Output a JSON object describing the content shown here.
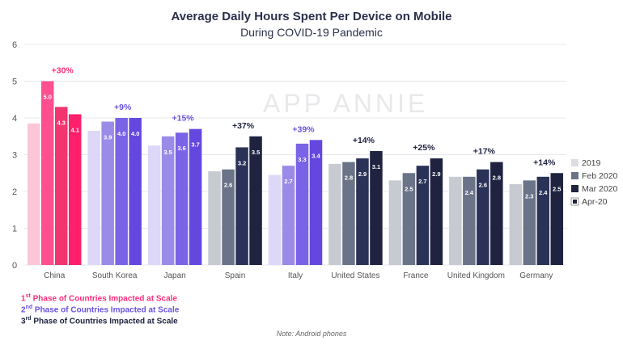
{
  "title": "Average Daily Hours Spent Per Device on Mobile",
  "subtitle": "During COVID-19 Pandemic",
  "watermark": "APP ANNIE",
  "note": "Note: Android phones",
  "phases": [
    {
      "ord": "1",
      "suffix": "st",
      "text": " Phase of Countries Impacted  at Scale",
      "color": "#ff2d7a"
    },
    {
      "ord": "2",
      "suffix": "nd",
      "text": " Phase of Countries Impacted  at Scale",
      "color": "#6b52e0"
    },
    {
      "ord": "3",
      "suffix": "rd",
      "text": " Phase of Countries Impacted  at Scale",
      "color": "#1f2340"
    }
  ],
  "chart_data": {
    "type": "bar",
    "title": "Average Daily Hours Spent Per Device on Mobile",
    "subtitle": "During COVID-19 Pandemic",
    "ylim": [
      0,
      6
    ],
    "yticks": [
      0,
      1,
      2,
      3,
      4,
      5,
      6
    ],
    "grid": true,
    "legend_position": "right",
    "categories": [
      "China",
      "South Korea",
      "Japan",
      "Spain",
      "Italy",
      "United States",
      "France",
      "United Kingdom",
      "Germany"
    ],
    "series": [
      {
        "name": "2019",
        "values": [
          3.85,
          3.65,
          3.25,
          2.55,
          2.45,
          2.75,
          2.3,
          2.4,
          2.2
        ],
        "labels": [
          "",
          "",
          "",
          "",
          "",
          "",
          "",
          "",
          ""
        ]
      },
      {
        "name": "Feb 2020",
        "values": [
          5.0,
          3.9,
          3.5,
          2.6,
          2.7,
          2.8,
          2.5,
          2.4,
          2.3
        ],
        "labels": [
          "5.0",
          "3.9",
          "3.5",
          "2.6",
          "2.7",
          "2.8",
          "2.5",
          "2.4",
          "2.3"
        ]
      },
      {
        "name": "Mar 2020",
        "values": [
          4.3,
          4.0,
          3.6,
          3.2,
          3.3,
          2.9,
          2.7,
          2.6,
          2.4
        ],
        "labels": [
          "4.3",
          "4.0",
          "3.6",
          "3.2",
          "3.3",
          "2.9",
          "2.7",
          "2.6",
          "2.4"
        ]
      },
      {
        "name": "Apr-20",
        "values": [
          4.1,
          4.0,
          3.7,
          3.5,
          3.4,
          3.1,
          2.9,
          2.8,
          2.5
        ],
        "labels": [
          "4.1",
          "4.0",
          "3.7",
          "3.5",
          "3.4",
          "3.1",
          "2.9",
          "2.8",
          "2.5"
        ]
      }
    ],
    "annotations": [
      "+30%",
      "+9%",
      "+15%",
      "+37%",
      "+39%",
      "+14%",
      "+25%",
      "+17%",
      "+14%"
    ],
    "phase_of_category": [
      1,
      2,
      2,
      3,
      2,
      3,
      3,
      3,
      3
    ],
    "legend_colors": [
      "#dcdce2",
      "#6a7387",
      "#1f2340",
      "#1f2340"
    ]
  },
  "colors": {
    "phase1": [
      "#fbc6d8",
      "#ff4f8f",
      "#f2356f",
      "#ff1f6a"
    ],
    "phase2": [
      "#ddd8f7",
      "#9a8be8",
      "#7a63e6",
      "#6447df"
    ],
    "phase3": [
      "#c8cad2",
      "#6a7387",
      "#2b3257",
      "#1f2340"
    ],
    "annot": {
      "1": "#ff2d7a",
      "2": "#6b52e0",
      "3": "#1f2340"
    },
    "grid": "#e8e8ec",
    "axis_text": "#555555"
  }
}
